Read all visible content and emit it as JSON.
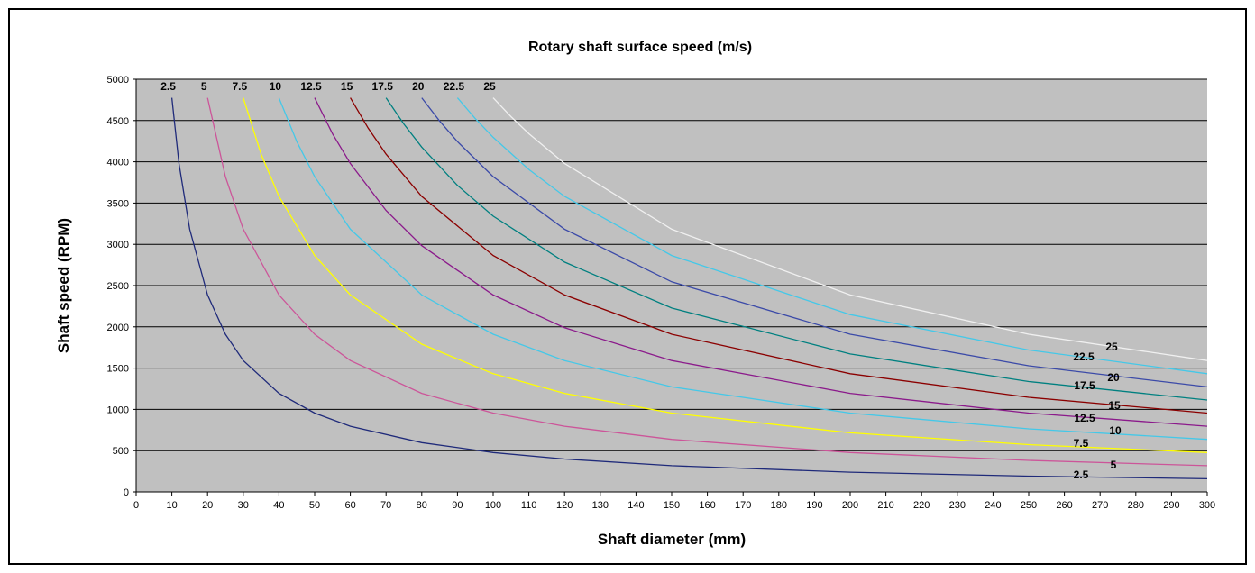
{
  "chart_data": {
    "type": "line",
    "title": "Rotary shaft surface speed (m/s)",
    "xlabel": "Shaft diameter (mm)",
    "ylabel": "Shaft speed (RPM)",
    "xlim": [
      0,
      300
    ],
    "ylim": [
      0,
      5000
    ],
    "x_ticks": [
      0,
      10,
      20,
      30,
      40,
      50,
      60,
      70,
      80,
      90,
      100,
      110,
      120,
      130,
      140,
      150,
      160,
      170,
      180,
      190,
      200,
      210,
      220,
      230,
      240,
      250,
      260,
      270,
      280,
      290,
      300
    ],
    "y_ticks": [
      0,
      500,
      1000,
      1500,
      2000,
      2500,
      3000,
      3500,
      4000,
      4500,
      5000
    ],
    "grid": "horizontal",
    "plot_background": "#c0c0c0",
    "series": [
      {
        "name": "2.5",
        "color": "#1f2a7a",
        "x": [
          10,
          12,
          15,
          20,
          25,
          30,
          40,
          50,
          60,
          80,
          100,
          120,
          150,
          200,
          250,
          300
        ],
        "y": [
          4775,
          3979,
          3183,
          2387,
          1910,
          1592,
          1194,
          955,
          796,
          597,
          477,
          398,
          318,
          239,
          191,
          159
        ]
      },
      {
        "name": "5",
        "color": "#cc5599",
        "x": [
          20,
          25,
          30,
          40,
          50,
          60,
          80,
          100,
          120,
          150,
          200,
          250,
          300
        ],
        "y": [
          4775,
          3820,
          3183,
          2387,
          1910,
          1592,
          1194,
          955,
          796,
          637,
          477,
          382,
          318
        ]
      },
      {
        "name": "7.5",
        "color": "#ffff00",
        "x": [
          30,
          35,
          40,
          50,
          60,
          80,
          100,
          120,
          150,
          200,
          250,
          300
        ],
        "y": [
          4775,
          4093,
          3581,
          2865,
          2387,
          1790,
          1432,
          1194,
          955,
          716,
          573,
          477
        ]
      },
      {
        "name": "10",
        "color": "#44c8e8",
        "x": [
          40,
          45,
          50,
          60,
          80,
          100,
          120,
          150,
          200,
          250,
          300
        ],
        "y": [
          4775,
          4244,
          3820,
          3183,
          2387,
          1910,
          1592,
          1273,
          955,
          764,
          637
        ]
      },
      {
        "name": "12.5",
        "color": "#8b1a8b",
        "x": [
          50,
          55,
          60,
          70,
          80,
          100,
          120,
          150,
          200,
          250,
          300
        ],
        "y": [
          4775,
          4341,
          3979,
          3410,
          2984,
          2387,
          1989,
          1592,
          1194,
          955,
          796
        ]
      },
      {
        "name": "15",
        "color": "#8b0000",
        "x": [
          60,
          65,
          70,
          80,
          100,
          120,
          150,
          200,
          250,
          300
        ],
        "y": [
          4775,
          4407,
          4093,
          3581,
          2865,
          2387,
          1910,
          1432,
          1146,
          955
        ]
      },
      {
        "name": "17.5",
        "color": "#008080",
        "x": [
          70,
          75,
          80,
          90,
          100,
          120,
          150,
          200,
          250,
          300
        ],
        "y": [
          4775,
          4456,
          4178,
          3714,
          3342,
          2785,
          2228,
          1671,
          1337,
          1114
        ]
      },
      {
        "name": "20",
        "color": "#3b4aa8",
        "x": [
          80,
          85,
          90,
          100,
          120,
          150,
          200,
          250,
          300
        ],
        "y": [
          4775,
          4494,
          4244,
          3820,
          3183,
          2546,
          1910,
          1528,
          1273
        ]
      },
      {
        "name": "22.5",
        "color": "#44c8e8",
        "x": [
          90,
          95,
          100,
          110,
          120,
          150,
          200,
          250,
          300
        ],
        "y": [
          4775,
          4523,
          4297,
          3907,
          3581,
          2865,
          2149,
          1719,
          1432
        ]
      },
      {
        "name": "25",
        "color": "#f0f0f0",
        "x": [
          100,
          105,
          110,
          120,
          150,
          200,
          250,
          300
        ],
        "y": [
          4775,
          4547,
          4341,
          3979,
          3183,
          2387,
          1910,
          1592
        ]
      }
    ],
    "top_labels": [
      "2.5",
      "5",
      "7.5",
      "10",
      "12.5",
      "15",
      "17.5",
      "20",
      "22.5",
      "25"
    ],
    "right_labels": [
      "25",
      "22.5",
      "20",
      "17.5",
      "15",
      "12.5",
      "10",
      "7.5",
      "5",
      "2.5"
    ]
  }
}
